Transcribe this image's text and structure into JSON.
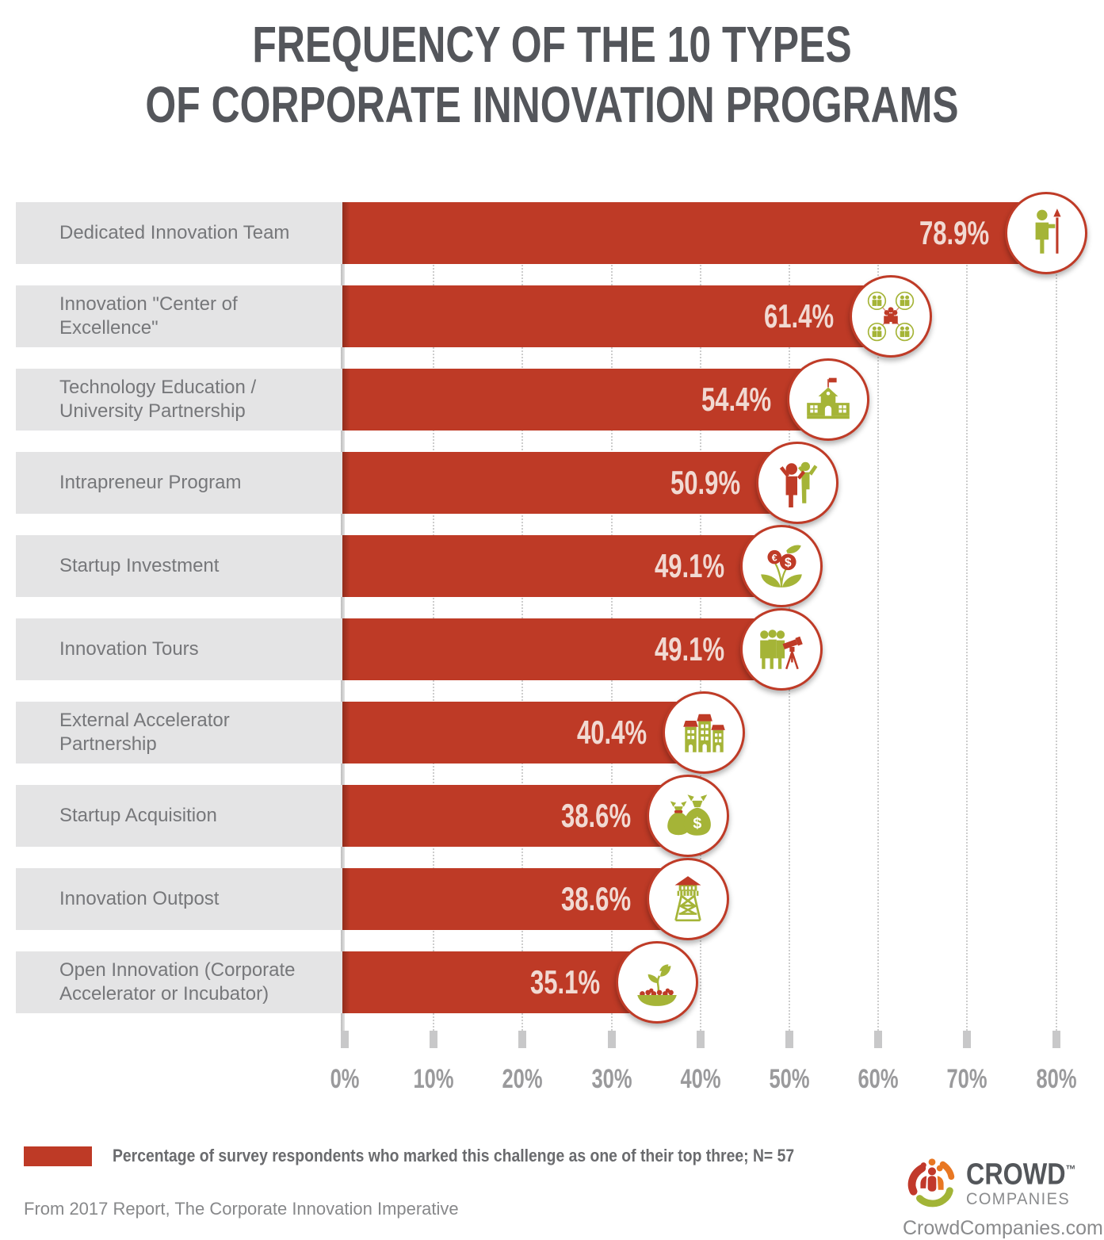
{
  "title": {
    "line1": "FREQUENCY OF THE 10 TYPES",
    "line2": "OF CORPORATE INNOVATION PROGRAMS"
  },
  "chart_data": {
    "type": "bar",
    "orientation": "horizontal",
    "title": "Frequency of the 10 Types of Corporate Innovation Programs",
    "categories": [
      "Dedicated Innovation Team",
      "Innovation \"Center of Excellence\"",
      "Technology Education / University Partnership",
      "Intrapreneur Program",
      "Startup Investment",
      "Innovation Tours",
      "External Accelerator Partnership",
      "Startup Acquisition",
      "Innovation Outpost",
      "Open Innovation (Corporate Accelerator or Incubator)"
    ],
    "values": [
      78.9,
      61.4,
      54.4,
      50.9,
      49.1,
      49.1,
      40.4,
      38.6,
      38.6,
      35.1
    ],
    "value_labels": [
      "78.9%",
      "61.4%",
      "54.4%",
      "50.9%",
      "49.1%",
      "49.1%",
      "40.4%",
      "38.6%",
      "38.6%",
      "35.1%"
    ],
    "icons": [
      "person-with-spear-icon",
      "people-network-icon",
      "university-building-icon",
      "celebrating-people-icon",
      "plant-with-coins-icon",
      "people-telescope-icon",
      "city-buildings-icon",
      "money-bags-icon",
      "watchtower-icon",
      "sprout-bowl-icon"
    ],
    "xlim": [
      0,
      80
    ],
    "x_tick_labels": [
      "0%",
      "10%",
      "20%",
      "30%",
      "40%",
      "50%",
      "60%",
      "70%",
      "80%"
    ],
    "x_tick_values": [
      0,
      10,
      20,
      30,
      40,
      50,
      60,
      70,
      80
    ],
    "grid": "vertical-dotted",
    "legend_position": "bottom-left",
    "bar_color": "#BE3A26",
    "bar_label_color": "#F1D9D2",
    "category_box_color": "#E4E4E5",
    "icon_green": "#A5B437",
    "icon_red": "#BF3B27"
  },
  "legend": {
    "swatch_color": "#BE3A26",
    "text": "Percentage of survey respondents who marked this challenge as one of their top three; N= 57"
  },
  "footer": {
    "source": "From 2017 Report, The Corporate Innovation Imperative",
    "website": "CrowdCompanies.com"
  },
  "logo": {
    "name": "CROWD",
    "trademark": "™",
    "subname": "COMPANIES"
  }
}
